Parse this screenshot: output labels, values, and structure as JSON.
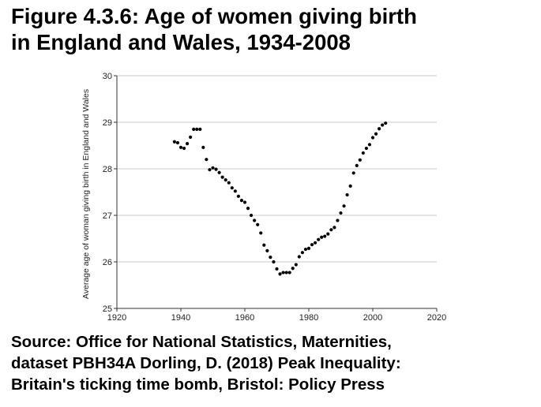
{
  "title_lines": [
    "Figure 4.3.6: Age of women giving birth",
    "in England and Wales, 1934-2008"
  ],
  "source_lines": [
    "Source: Office for National Statistics, Maternities,",
    "dataset PBH34A Dorling, D. (2018) Peak Inequality:",
    "Britain's ticking time bomb, Bristol: Policy Press"
  ],
  "chart_data": {
    "type": "scatter",
    "title": "Figure 4.3.6: Age of women giving birth in England and Wales, 1934-2008",
    "xlabel": "",
    "ylabel": "Average age of woman giving birth in England and Wales",
    "xlim": [
      1920,
      2020
    ],
    "ylim": [
      25,
      30
    ],
    "xticks": [
      "1920",
      "1940",
      "1960",
      "1980",
      "2000",
      "2020"
    ],
    "yticks": [
      "25",
      "26",
      "27",
      "28",
      "29",
      "30"
    ],
    "grid": "horizontal",
    "marker_color": "#000000",
    "x": [
      1938,
      1939,
      1940,
      1941,
      1942,
      1943,
      1944,
      1945,
      1946,
      1947,
      1948,
      1949,
      1950,
      1951,
      1952,
      1953,
      1954,
      1955,
      1956,
      1957,
      1958,
      1959,
      1960,
      1961,
      1962,
      1963,
      1964,
      1965,
      1966,
      1967,
      1968,
      1969,
      1970,
      1971,
      1972,
      1973,
      1974,
      1975,
      1976,
      1977,
      1978,
      1979,
      1980,
      1981,
      1982,
      1983,
      1984,
      1985,
      1986,
      1987,
      1988,
      1989,
      1990,
      1991,
      1992,
      1993,
      1994,
      1995,
      1996,
      1997,
      1998,
      1999,
      2000,
      2001,
      2002,
      2003,
      2004
    ],
    "y": [
      28.58,
      28.56,
      28.46,
      28.44,
      28.54,
      28.68,
      28.85,
      28.85,
      28.85,
      28.46,
      28.2,
      27.98,
      28.02,
      27.99,
      27.92,
      27.82,
      27.76,
      27.7,
      27.59,
      27.52,
      27.41,
      27.32,
      27.28,
      27.15,
      27.0,
      26.89,
      26.8,
      26.62,
      26.36,
      26.24,
      26.1,
      26.0,
      25.85,
      25.74,
      25.77,
      25.77,
      25.77,
      25.86,
      25.94,
      26.11,
      26.2,
      26.27,
      26.29,
      26.37,
      26.41,
      26.48,
      26.53,
      26.55,
      26.6,
      26.69,
      26.74,
      26.89,
      27.05,
      27.2,
      27.44,
      27.63,
      27.91,
      28.07,
      28.19,
      28.34,
      28.44,
      28.52,
      28.67,
      28.75,
      28.86,
      28.94,
      28.98
    ]
  }
}
